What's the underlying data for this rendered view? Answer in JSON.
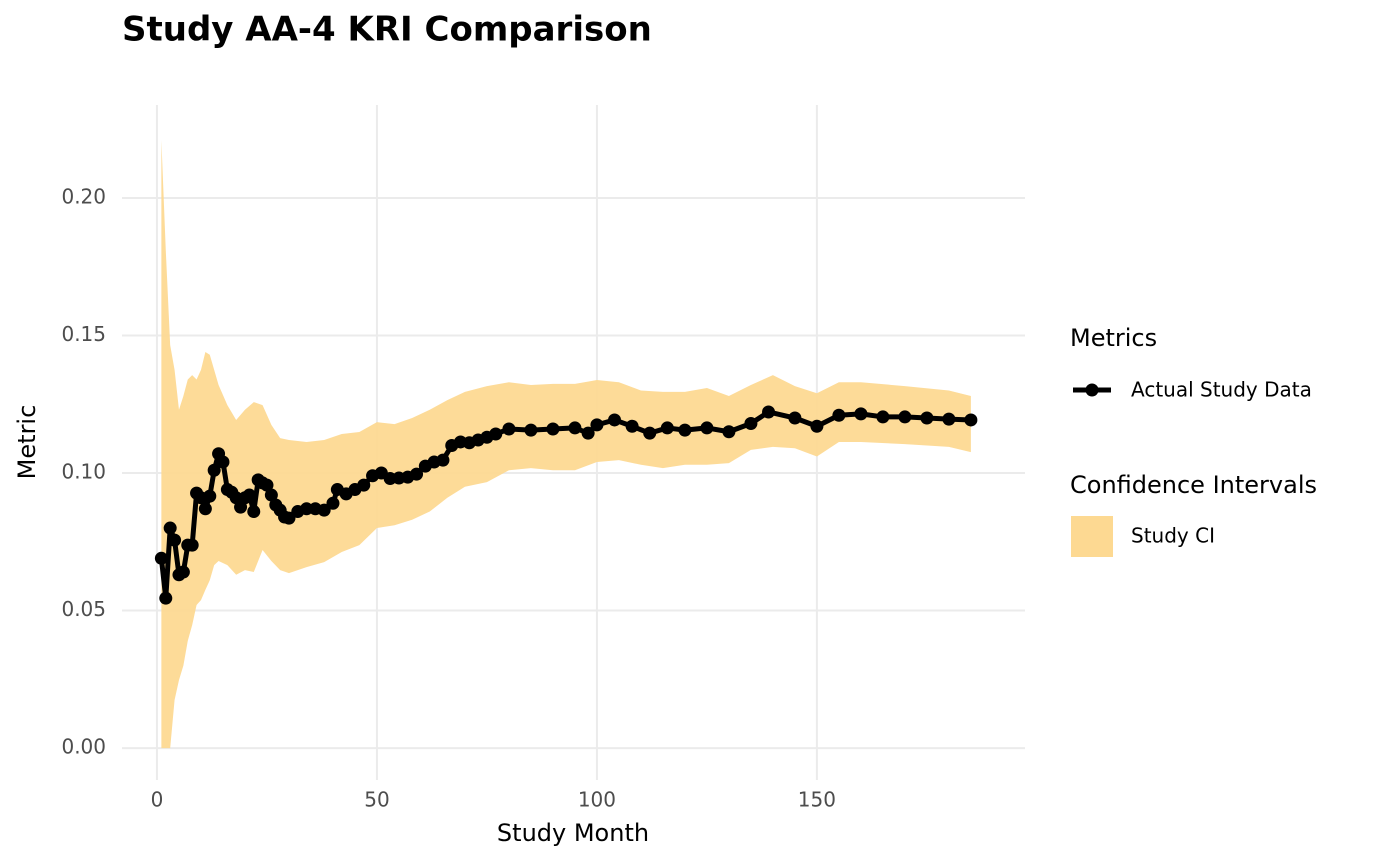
{
  "chart_data": {
    "type": "line",
    "title": "Study AA-4 KRI Comparison",
    "x_label": "Study Month",
    "y_label": "Metric",
    "xlim": [
      -7.95,
      197.3
    ],
    "ylim": [
      -0.0116,
      0.2338
    ],
    "xticks": [
      0,
      50,
      100,
      150
    ],
    "yticks": [
      {
        "value": 0,
        "label": "0.00"
      },
      0.05,
      {
        "value": 0.1,
        "label": "0.10"
      },
      0.15,
      {
        "value": 0.2,
        "label": "0.20"
      }
    ],
    "grid": true,
    "legend_titles": [
      "Metrics",
      "Confidence Intervals"
    ],
    "x": [
      1,
      2,
      3,
      4,
      5,
      6,
      7,
      8,
      9,
      10,
      11,
      12,
      13,
      14,
      15,
      16,
      17,
      18,
      19,
      20,
      21,
      22,
      23,
      24,
      25,
      26,
      27,
      28,
      29,
      30,
      32,
      34,
      36,
      38,
      40,
      41,
      43,
      45,
      47,
      49,
      51,
      53,
      55,
      57,
      59,
      61,
      63,
      65,
      67,
      69,
      71,
      73,
      75,
      77,
      80,
      85,
      90,
      95,
      98,
      100,
      104,
      108,
      112,
      116,
      120,
      125,
      130,
      135,
      139,
      145,
      150,
      155,
      160,
      165,
      170,
      175,
      180,
      185
    ],
    "series": [
      {
        "name": "Actual Study Data",
        "color": "#000000",
        "values": [
          0.069,
          0.0545,
          0.08,
          0.0756,
          0.063,
          0.064,
          0.0738,
          0.0738,
          0.0927,
          0.091,
          0.087,
          0.0916,
          0.101,
          0.107,
          0.104,
          0.094,
          0.093,
          0.091,
          0.0876,
          0.091,
          0.092,
          0.086,
          0.0975,
          0.0964,
          0.0956,
          0.092,
          0.0884,
          0.0865,
          0.084,
          0.0836,
          0.086,
          0.087,
          0.087,
          0.0865,
          0.089,
          0.094,
          0.0924,
          0.094,
          0.0956,
          0.099,
          0.1,
          0.098,
          0.0982,
          0.0985,
          0.0996,
          0.1025,
          0.104,
          0.1047,
          0.11,
          0.1113,
          0.111,
          0.112,
          0.113,
          0.1142,
          0.116,
          0.1156,
          0.116,
          0.1164,
          0.1145,
          0.1175,
          0.1193,
          0.117,
          0.1145,
          0.1164,
          0.1156,
          0.1164,
          0.115,
          0.118,
          0.1222,
          0.12,
          0.117,
          0.121,
          0.1215,
          0.1204,
          0.1204,
          0.12,
          0.1196,
          0.1193
        ]
      }
    ],
    "band": {
      "name": "Study CI",
      "color": "#fdd992",
      "x": [
        1,
        2,
        3,
        4,
        5,
        6,
        7,
        8,
        9,
        10,
        11,
        12,
        13,
        14,
        16,
        18,
        20,
        22,
        24,
        26,
        28,
        30,
        34,
        38,
        42,
        46,
        50,
        54,
        58,
        62,
        66,
        70,
        75,
        80,
        85,
        90,
        95,
        100,
        105,
        110,
        115,
        120,
        125,
        130,
        135,
        140,
        145,
        150,
        155,
        160,
        170,
        180,
        185
      ],
      "lower": [
        0,
        0,
        0,
        0.0175,
        0.0247,
        0.03,
        0.039,
        0.0447,
        0.052,
        0.0538,
        0.0575,
        0.061,
        0.0665,
        0.068,
        0.0665,
        0.063,
        0.0647,
        0.064,
        0.072,
        0.068,
        0.0647,
        0.0636,
        0.0658,
        0.0676,
        0.0713,
        0.0738,
        0.08,
        0.081,
        0.083,
        0.086,
        0.091,
        0.095,
        0.0967,
        0.101,
        0.1018,
        0.101,
        0.101,
        0.104,
        0.1047,
        0.103,
        0.1018,
        0.103,
        0.103,
        0.1036,
        0.1084,
        0.1095,
        0.109,
        0.106,
        0.1113,
        0.1113,
        0.1105,
        0.1095,
        0.1076
      ],
      "upper": [
        0.221,
        0.181,
        0.1465,
        0.1375,
        0.123,
        0.128,
        0.134,
        0.1356,
        0.134,
        0.1375,
        0.144,
        0.143,
        0.1375,
        0.132,
        0.1247,
        0.1193,
        0.123,
        0.1258,
        0.1247,
        0.1175,
        0.1127,
        0.112,
        0.1113,
        0.112,
        0.1142,
        0.1149,
        0.1185,
        0.1178,
        0.12,
        0.123,
        0.1265,
        0.1295,
        0.1316,
        0.133,
        0.132,
        0.1324,
        0.1324,
        0.1338,
        0.133,
        0.13,
        0.1295,
        0.1295,
        0.1309,
        0.128,
        0.132,
        0.1356,
        0.1316,
        0.129,
        0.133,
        0.133,
        0.1316,
        0.13,
        0.128
      ]
    }
  }
}
